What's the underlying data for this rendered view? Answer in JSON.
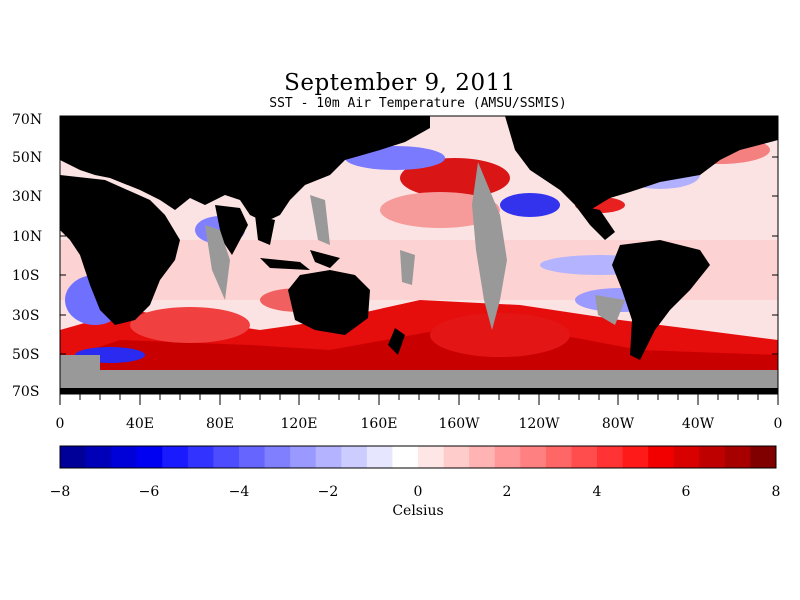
{
  "title": "September 9, 2011",
  "subtitle": "SST - 10m Air Temperature (AMSU/SSMIS)",
  "colors": {
    "land": "#000000",
    "no_data": "#999999",
    "frame": "#000000"
  },
  "map": {
    "lat_labels": [
      "70N",
      "50N",
      "30N",
      "10N",
      "10S",
      "30S",
      "50S",
      "70S"
    ],
    "lon_labels": [
      "0",
      "40E",
      "80E",
      "120E",
      "160E",
      "160W",
      "120W",
      "80W",
      "40W",
      "0"
    ],
    "lat_range": [
      -70,
      70
    ],
    "lon_range": [
      0,
      360
    ]
  },
  "colorbar": {
    "label": "Celsius",
    "tick_labels": [
      "−8",
      "−6",
      "−4",
      "−2",
      "0",
      "2",
      "4",
      "6",
      "8"
    ],
    "range": [
      -8,
      8
    ],
    "colors": [
      "#000099",
      "#0000b8",
      "#0000d9",
      "#0000f2",
      "#1a1aff",
      "#3333ff",
      "#4d4dff",
      "#6666ff",
      "#8080ff",
      "#9999ff",
      "#b3b3ff",
      "#ccccff",
      "#e6e6ff",
      "#ffffff",
      "#ffe6e6",
      "#ffcccc",
      "#ffb3b3",
      "#ff9999",
      "#ff8080",
      "#ff6666",
      "#ff4d4d",
      "#ff3333",
      "#ff1a1a",
      "#f20000",
      "#d90000",
      "#bf0000",
      "#a60000",
      "#800000"
    ]
  }
}
